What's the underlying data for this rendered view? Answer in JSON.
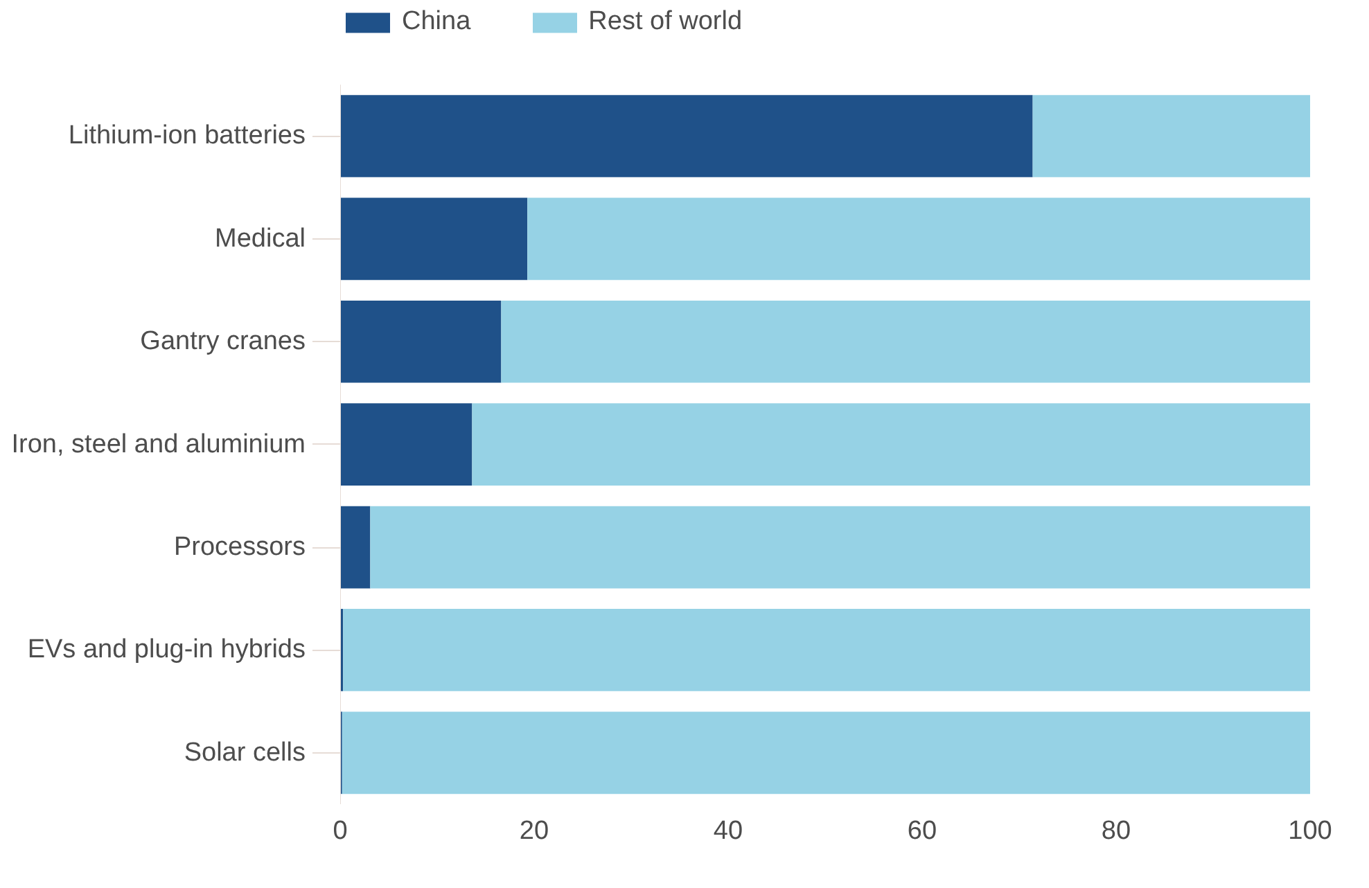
{
  "chart_data": {
    "type": "bar",
    "orientation": "horizontal",
    "stacked": true,
    "categories": [
      "Lithium-ion batteries",
      "Medical",
      "Gantry cranes",
      "Iron, steel and aluminium",
      "Processors",
      "EVs and plug-in hybrids",
      "Solar cells"
    ],
    "series": [
      {
        "name": "China",
        "color": "#1f5189",
        "values": [
          71.4,
          19.3,
          16.6,
          13.6,
          3.1,
          0.3,
          0.2
        ]
      },
      {
        "name": "Rest of world",
        "color": "#96d2e5",
        "values": [
          28.6,
          80.7,
          83.4,
          86.4,
          96.9,
          99.7,
          99.8
        ]
      }
    ],
    "xlim": [
      0,
      100
    ],
    "xticks": [
      0,
      20,
      40,
      60,
      80,
      100
    ],
    "grid": false,
    "legend": "top left"
  }
}
